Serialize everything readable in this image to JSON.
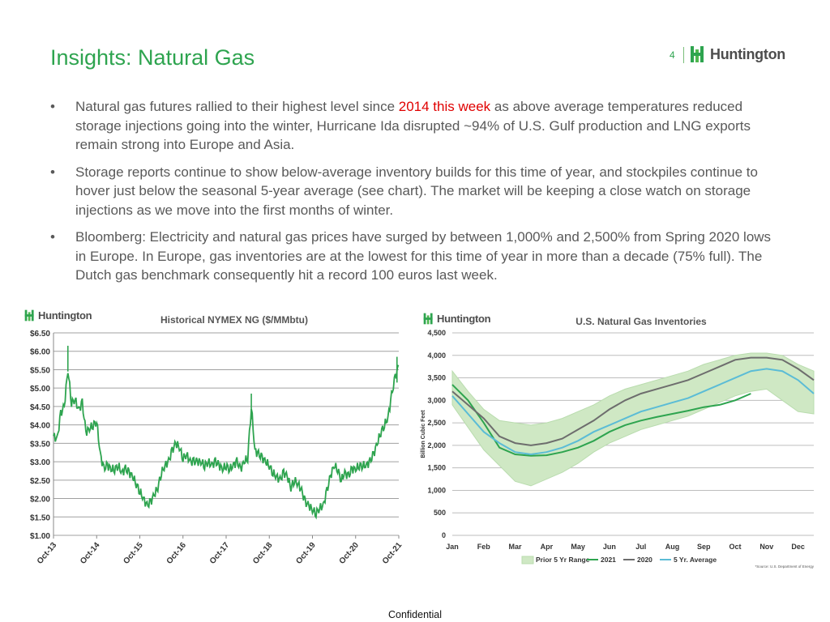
{
  "header": {
    "title": "Insights: Natural Gas",
    "page_number": "4",
    "logo_text": "Huntington"
  },
  "bullets": [
    {
      "before": "Natural gas futures rallied to their highest level since ",
      "highlight": "2014 this week",
      "after": " as above average temperatures reduced storage injections going into the winter, Hurricane Ida disrupted ~94% of U.S. Gulf production and LNG exports remain strong into Europe and Asia."
    },
    {
      "before": "Storage reports continue to show below-average inventory builds for this time of year, and stockpiles continue to hover just below the seasonal 5-year average (see chart). The market will be keeping a close watch on storage injections as we move into the first months of winter.",
      "highlight": "",
      "after": ""
    },
    {
      "before": "Bloomberg: Electricity and natural gas prices have surged by between 1,000% and 2,500% from Spring 2020 lows in Europe. In Europe, gas inventories are at the lowest for this time of year in more than a decade (75% full). The Dutch gas benchmark consequently hit a record 100 euros last week.",
      "highlight": "",
      "after": ""
    }
  ],
  "chart_data": [
    {
      "type": "line",
      "title": "Historical NYMEX NG ($/MMbtu)",
      "logo_text": "Huntington",
      "ylim": [
        1.0,
        6.5
      ],
      "yticks": [
        "$1.00",
        "$1.50",
        "$2.00",
        "$2.50",
        "$3.00",
        "$3.50",
        "$4.00",
        "$4.50",
        "$5.00",
        "$5.50",
        "$6.00",
        "$6.50"
      ],
      "xticks": [
        "Oct-13",
        "Oct-14",
        "Oct-15",
        "Oct-16",
        "Oct-17",
        "Oct-18",
        "Oct-19",
        "Oct-20",
        "Oct-21"
      ],
      "xlim": [
        0,
        96
      ],
      "grid": true,
      "color": "#2ea44f",
      "series": [
        {
          "x": [
            0,
            1,
            2,
            3,
            4,
            5,
            6,
            7,
            8,
            9,
            10,
            11,
            12,
            13,
            14,
            15,
            16,
            17,
            18,
            19,
            20,
            21,
            22,
            23,
            24,
            25,
            26,
            27,
            28,
            29,
            30,
            31,
            32,
            33,
            34,
            35,
            36,
            37,
            38,
            39,
            40,
            41,
            42,
            43,
            44,
            45,
            46,
            47,
            48,
            49,
            50,
            51,
            52,
            53,
            54,
            55,
            56,
            57,
            58,
            59,
            60,
            61,
            62,
            63,
            64,
            65,
            66,
            67,
            68,
            69,
            70,
            71,
            72,
            73,
            74,
            75,
            76,
            77,
            78,
            79,
            80,
            81,
            82,
            83,
            84,
            85,
            86,
            87,
            88,
            89,
            90,
            91,
            92,
            93,
            94,
            95,
            96
          ],
          "values": [
            3.7,
            3.6,
            4.3,
            4.5,
            5.5,
            4.6,
            4.7,
            4.4,
            4.6,
            3.8,
            3.9,
            4.0,
            4.1,
            3.2,
            2.8,
            2.9,
            2.8,
            2.8,
            2.9,
            2.7,
            2.8,
            2.7,
            2.6,
            2.4,
            2.2,
            2.0,
            1.8,
            1.9,
            2.1,
            2.3,
            2.7,
            2.9,
            3.0,
            3.3,
            3.5,
            3.4,
            3.1,
            3.2,
            3.0,
            3.0,
            3.0,
            3.0,
            2.9,
            3.0,
            2.9,
            3.0,
            2.9,
            2.8,
            2.9,
            2.8,
            2.9,
            3.0,
            2.8,
            3.0,
            3.1,
            4.5,
            3.3,
            3.2,
            3.1,
            3.0,
            2.9,
            2.7,
            2.6,
            2.5,
            2.7,
            2.6,
            2.3,
            2.5,
            2.4,
            2.2,
            1.9,
            1.8,
            1.7,
            1.6,
            1.75,
            1.8,
            2.2,
            2.6,
            2.9,
            2.8,
            2.5,
            2.7,
            2.6,
            2.8,
            2.8,
            2.9,
            2.9,
            2.9,
            3.0,
            3.2,
            3.5,
            3.8,
            4.0,
            4.2,
            4.8,
            5.3,
            5.6
          ]
        }
      ]
    },
    {
      "type": "line",
      "title": "U.S. Natural Gas Inventories",
      "logo_text": "Huntington",
      "ylabel": "Billion Cubic Feet",
      "ylim": [
        0,
        4500
      ],
      "yticks": [
        "0",
        "500",
        "1,000",
        "1,500",
        "2,000",
        "2,500",
        "3,000",
        "3,500",
        "4,000",
        "4,500"
      ],
      "categories": [
        "Jan",
        "Feb",
        "Mar",
        "Apr",
        "May",
        "Jun",
        "Jul",
        "Aug",
        "Sep",
        "Oct",
        "Nov",
        "Dec"
      ],
      "xlim": [
        0,
        11.5
      ],
      "grid": true,
      "legend": "bottom",
      "source": "*Source: U.S. Department of Energy",
      "series": [
        {
          "name": "Prior 5 Yr Range",
          "kind": "band",
          "color": "#cfe8c4",
          "x": [
            0,
            0.5,
            1,
            1.5,
            2,
            2.5,
            3,
            3.5,
            4,
            4.5,
            5,
            5.5,
            6,
            6.5,
            7,
            7.5,
            8,
            8.5,
            9,
            9.5,
            10,
            10.5,
            11,
            11.5
          ],
          "low": [
            2900,
            2400,
            1900,
            1550,
            1200,
            1100,
            1250,
            1400,
            1600,
            1850,
            2050,
            2200,
            2350,
            2450,
            2550,
            2650,
            2800,
            2950,
            3100,
            3200,
            3250,
            3000,
            2750,
            2700
          ],
          "high": [
            3650,
            3200,
            2800,
            2550,
            2500,
            2450,
            2500,
            2600,
            2750,
            2900,
            3100,
            3250,
            3350,
            3450,
            3550,
            3650,
            3800,
            3900,
            4000,
            4050,
            4050,
            4000,
            3800,
            3650
          ]
        },
        {
          "name": "2021",
          "kind": "line",
          "color": "#2ea44f",
          "x": [
            0,
            0.5,
            1,
            1.5,
            2,
            2.5,
            3,
            3.5,
            4,
            4.5,
            5,
            5.5,
            6,
            6.5,
            7,
            7.5,
            8,
            8.5,
            9,
            9.5
          ],
          "values": [
            3350,
            3000,
            2500,
            1950,
            1800,
            1770,
            1780,
            1850,
            1950,
            2100,
            2300,
            2450,
            2550,
            2630,
            2700,
            2770,
            2850,
            2900,
            3000,
            3150
          ]
        },
        {
          "name": "2020",
          "kind": "line",
          "color": "#6d6d6d",
          "x": [
            0,
            0.5,
            1,
            1.5,
            2,
            2.5,
            3,
            3.5,
            4,
            4.5,
            5,
            5.5,
            6,
            6.5,
            7,
            7.5,
            8,
            8.5,
            9,
            9.5,
            10,
            10.5,
            11,
            11.5
          ],
          "values": [
            3200,
            2900,
            2600,
            2200,
            2050,
            2000,
            2050,
            2150,
            2350,
            2550,
            2800,
            3000,
            3150,
            3250,
            3350,
            3450,
            3600,
            3750,
            3900,
            3950,
            3950,
            3900,
            3700,
            3450
          ]
        },
        {
          "name": "5 Yr. Average",
          "kind": "line",
          "color": "#5bbcd6",
          "x": [
            0,
            0.5,
            1,
            1.5,
            2,
            2.5,
            3,
            3.5,
            4,
            4.5,
            5,
            5.5,
            6,
            6.5,
            7,
            7.5,
            8,
            8.5,
            9,
            9.5,
            10,
            10.5,
            11,
            11.5
          ],
          "values": [
            3100,
            2700,
            2300,
            2050,
            1850,
            1800,
            1850,
            1950,
            2100,
            2300,
            2450,
            2600,
            2750,
            2850,
            2950,
            3050,
            3200,
            3350,
            3500,
            3650,
            3700,
            3650,
            3450,
            3150
          ]
        }
      ]
    }
  ],
  "footer": "Confidential"
}
